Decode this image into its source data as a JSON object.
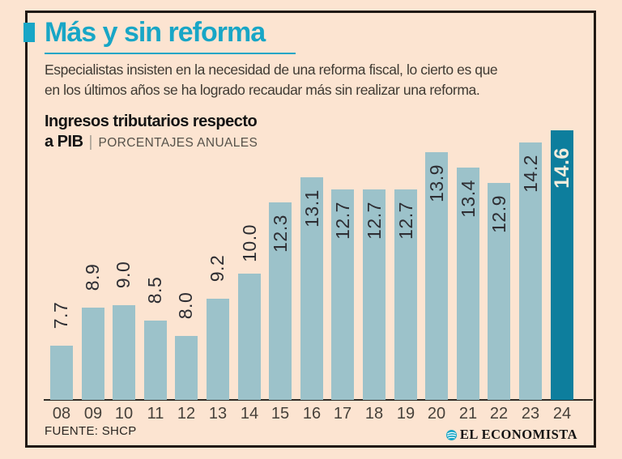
{
  "header": {
    "title": "Más y sin reforma",
    "subtitle_lines": [
      "Especialistas insisten en la necesidad de una reforma fiscal, lo cierto es que",
      "en los últimos años se ha logrado recaudar más sin realizar una reforma."
    ]
  },
  "chart_heading": {
    "line1": "Ingresos tributarios respecto",
    "line2_bold": "a PIB",
    "separator": "|",
    "line2_sub": "PORCENTAJES ANUALES"
  },
  "chart_data": {
    "type": "bar",
    "title": "Ingresos tributarios respecto a PIB",
    "subtitle": "Porcentajes anuales",
    "categories": [
      "08",
      "09",
      "10",
      "11",
      "12",
      "13",
      "14",
      "15",
      "16",
      "17",
      "18",
      "19",
      "20",
      "21",
      "22",
      "23",
      "24"
    ],
    "values": [
      7.7,
      8.9,
      9.0,
      8.5,
      8.0,
      9.2,
      10.0,
      12.3,
      13.1,
      12.7,
      12.7,
      12.7,
      13.9,
      13.4,
      12.9,
      14.2,
      14.6
    ],
    "labels": [
      "7.7",
      "8.9",
      "9.0",
      "8.5",
      "8.0",
      "9.2",
      "10.0",
      "12.3",
      "13.1",
      "12.7",
      "12.7",
      "12.7",
      "13.9",
      "13.4",
      "12.9",
      "14.2",
      "14.6"
    ],
    "highlight_index": 16,
    "value_labels_rotated": true,
    "grid": false,
    "ylim": [
      6,
      15
    ],
    "legend_position": "none"
  },
  "footer": {
    "source": "FUENTE: SHCP",
    "brand": "EL ECONOMISTA",
    "brand_icon": "el-economista-swirl-icon"
  },
  "colors": {
    "background": "#fce4d1",
    "accent_teal": "#18a6c6",
    "bar": "#9cc2ca",
    "bar_highlight": "#0d7e9d",
    "frame_border": "#201914",
    "value_text": "#2e2e33",
    "value_text_highlight": "#f2ecdc"
  }
}
